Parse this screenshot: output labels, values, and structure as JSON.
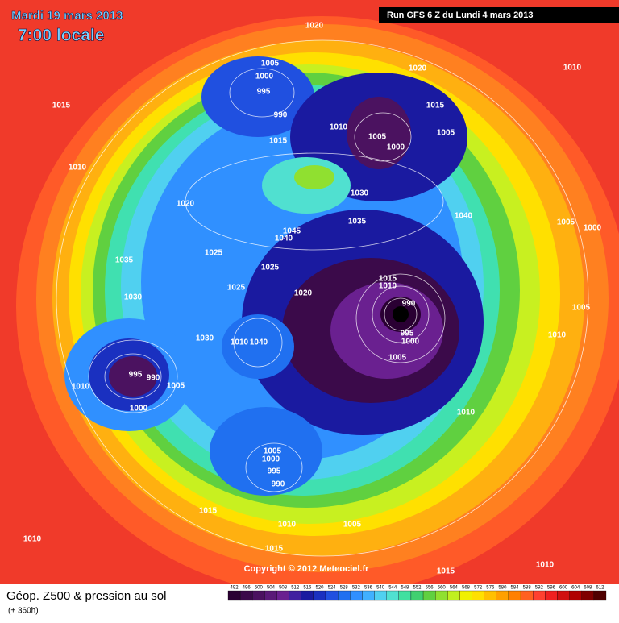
{
  "header": {
    "date": "Mardi 19 mars 2013",
    "time": "7:00 locale",
    "run": "Run GFS 6 Z du Lundi 4 mars 2013"
  },
  "copyright": "Copyright © 2012 Meteociel.fr",
  "footer": {
    "title": "Géop. Z500 & pression au sol",
    "subtitle": "(+ 360h)"
  },
  "scale": {
    "values": [
      492,
      496,
      500,
      504,
      508,
      512,
      516,
      520,
      524,
      528,
      532,
      536,
      540,
      544,
      548,
      552,
      556,
      560,
      564,
      568,
      572,
      576,
      580,
      584,
      588,
      592,
      596,
      600,
      604,
      608,
      612
    ],
    "colors": [
      "#2a0033",
      "#3b0a4a",
      "#4b1260",
      "#5a1a78",
      "#6a2090",
      "#4020a0",
      "#1a1aa0",
      "#1a30c0",
      "#2050e0",
      "#2070f0",
      "#3090ff",
      "#40b0ff",
      "#50d0f0",
      "#50e0d0",
      "#40e0a0",
      "#40d070",
      "#60d040",
      "#90e030",
      "#c0f020",
      "#f0f000",
      "#ffe000",
      "#ffc000",
      "#ffa000",
      "#ff8000",
      "#ff6020",
      "#ff4030",
      "#f02020",
      "#d01010",
      "#b00000",
      "#800000",
      "#500000"
    ]
  },
  "isobars": [
    1020,
    1010,
    1005,
    1000,
    995,
    990,
    1015,
    1020,
    1015,
    1005,
    1010,
    1015,
    1005,
    1000,
    1010,
    1030,
    1020,
    1035,
    1040,
    1045,
    1040,
    1005,
    1000,
    1025,
    1025,
    1035,
    1015,
    1010,
    1025,
    1020,
    1030,
    990,
    1005,
    1030,
    1010,
    1040,
    995,
    1000,
    1010,
    1005,
    995,
    990,
    1005,
    1010,
    1000,
    1010,
    1005,
    1000,
    995,
    990,
    1015,
    1010,
    1005,
    1010,
    1015,
    1010,
    1015
  ]
}
